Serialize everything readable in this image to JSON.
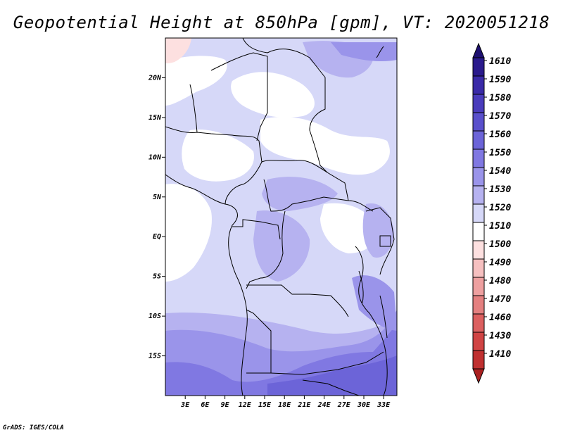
{
  "title": "Geopotential Height at 850hPa [gpm], VT: 2020051218",
  "credit": "GrADS: IGES/COLA",
  "map": {
    "lon_range": [
      0,
      35
    ],
    "lat_range": [
      -20,
      25
    ],
    "lat_ticks": [
      {
        "value": 20,
        "label": "20N"
      },
      {
        "value": 15,
        "label": "15N"
      },
      {
        "value": 10,
        "label": "10N"
      },
      {
        "value": 5,
        "label": "5N"
      },
      {
        "value": 0,
        "label": "EQ"
      },
      {
        "value": -5,
        "label": "5S"
      },
      {
        "value": -10,
        "label": "10S"
      },
      {
        "value": -15,
        "label": "15S"
      }
    ],
    "lon_ticks": [
      {
        "value": 3,
        "label": "3E"
      },
      {
        "value": 6,
        "label": "6E"
      },
      {
        "value": 9,
        "label": "9E"
      },
      {
        "value": 12,
        "label": "12E"
      },
      {
        "value": 15,
        "label": "15E"
      },
      {
        "value": 18,
        "label": "18E"
      },
      {
        "value": 21,
        "label": "21E"
      },
      {
        "value": 24,
        "label": "24E"
      },
      {
        "value": 27,
        "label": "27E"
      },
      {
        "value": 30,
        "label": "30E"
      },
      {
        "value": 33,
        "label": "33E"
      }
    ]
  },
  "colorbar": {
    "levels": [
      {
        "label": "1610",
        "color": "#2a1a8c"
      },
      {
        "label": "1590",
        "color": "#3a2aa8"
      },
      {
        "label": "1580",
        "color": "#4a3cbc"
      },
      {
        "label": "1570",
        "color": "#5a50cc"
      },
      {
        "label": "1560",
        "color": "#6c64d8"
      },
      {
        "label": "1550",
        "color": "#8078e2"
      },
      {
        "label": "1540",
        "color": "#9a94ea"
      },
      {
        "label": "1530",
        "color": "#b6b2f0"
      },
      {
        "label": "1520",
        "color": "#d6d8f8"
      },
      {
        "label": "1510",
        "color": "#ffffff"
      },
      {
        "label": "1500",
        "color": "#fde0e0"
      },
      {
        "label": "1490",
        "color": "#f6c0c0"
      },
      {
        "label": "1480",
        "color": "#eea0a0"
      },
      {
        "label": "1470",
        "color": "#e48080"
      },
      {
        "label": "1460",
        "color": "#dc6060"
      },
      {
        "label": "1430",
        "color": "#d04444"
      },
      {
        "label": "1410",
        "color": "#c03030"
      }
    ],
    "top_triangle_color": "#1e1070",
    "bottom_triangle_color": "#aa2020"
  }
}
